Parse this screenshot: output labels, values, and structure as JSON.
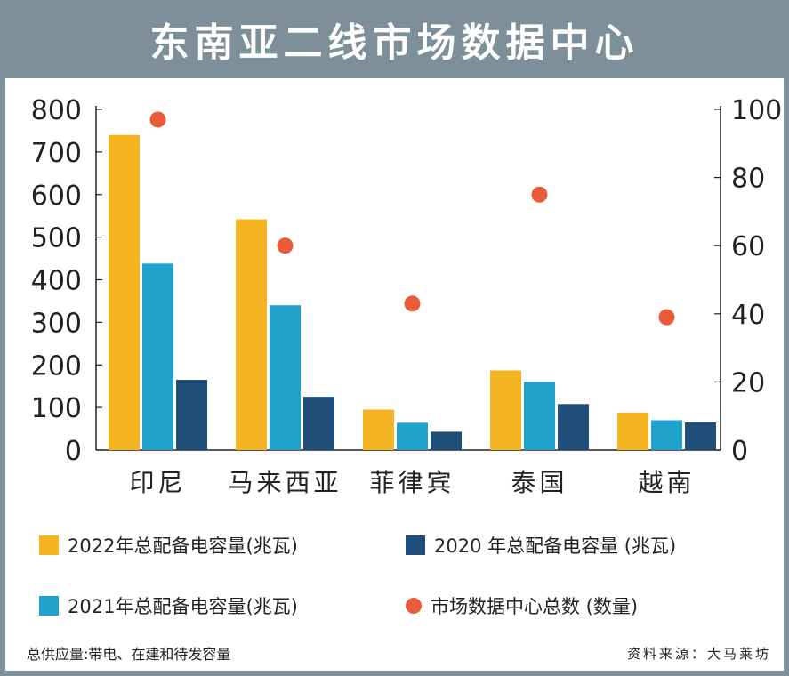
{
  "title": "东南亚二线市场数据中心",
  "chart_data": {
    "type": "bar",
    "categories": [
      "印尼",
      "马来西亚",
      "菲律宾",
      "泰国",
      "越南"
    ],
    "series": [
      {
        "name": "2022年总配备电容量(兆瓦)",
        "values": [
          740,
          542,
          95,
          187,
          88
        ],
        "color": "#f5b523",
        "axis": "left"
      },
      {
        "name": "2021年总配备电容量(兆瓦)",
        "values": [
          438,
          340,
          64,
          160,
          70
        ],
        "color": "#1fa3cd",
        "axis": "left"
      },
      {
        "name": "2020 年总配备电容量 (兆瓦)",
        "values": [
          165,
          125,
          43,
          108,
          65
        ],
        "color": "#1f4e79",
        "axis": "left"
      },
      {
        "name": "市场数据中心总数 (数量)",
        "values": [
          97,
          60,
          43,
          75,
          39
        ],
        "color": "#e85c3a",
        "axis": "right",
        "type": "scatter"
      }
    ],
    "ylim_left": [
      0,
      800
    ],
    "yticks_left": [
      "0",
      "100",
      "200",
      "300",
      "400",
      "500",
      "600",
      "700",
      "800"
    ],
    "ylim_right": [
      0,
      100
    ],
    "yticks_right": [
      "0",
      "20",
      "40",
      "60",
      "80",
      "100"
    ],
    "legend": [
      {
        "label": "2022年总配备电容量(兆瓦)",
        "color": "#f5b523",
        "shape": "square"
      },
      {
        "label": "2020 年总配备电容量 (兆瓦)",
        "color": "#1f4e79",
        "shape": "square"
      },
      {
        "label": "2021年总配备电容量(兆瓦)",
        "color": "#1fa3cd",
        "shape": "square"
      },
      {
        "label": "市场数据中心总数 (数量)",
        "color": "#e85c3a",
        "shape": "circle"
      }
    ]
  },
  "footnote": "总供应量:带电、在建和待发容量",
  "source": "资料来源：大马莱坊"
}
